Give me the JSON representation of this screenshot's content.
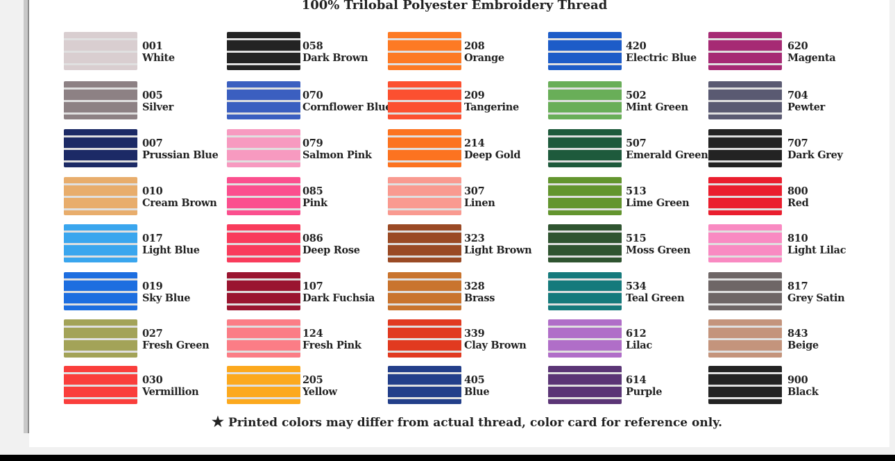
{
  "title": "100% Trilobal Polyester Embroidery Thread",
  "footnote": "Printed colors may differ from actual thread, color card for reference only.",
  "footnote_icon": "star-icon",
  "columns": [
    [
      {
        "code": "001",
        "name": "White",
        "color": "#d9ced0"
      },
      {
        "code": "005",
        "name": "Silver",
        "color": "#8d8184"
      },
      {
        "code": "007",
        "name": "Prussian Blue",
        "color": "#1c2a66"
      },
      {
        "code": "010",
        "name": "Cream Brown",
        "color": "#e8ad6c"
      },
      {
        "code": "017",
        "name": "Light Blue",
        "color": "#3aa6ee"
      },
      {
        "code": "019",
        "name": "Sky Blue",
        "color": "#1d6ee0"
      },
      {
        "code": "027",
        "name": "Fresh Green",
        "color": "#a3a358"
      },
      {
        "code": "030",
        "name": "Vermillion",
        "color": "#fa3e3c"
      }
    ],
    [
      {
        "code": "058",
        "name": "Dark Brown",
        "color": "#232323"
      },
      {
        "code": "070",
        "name": "Cornflower Blue",
        "color": "#3b5fc0"
      },
      {
        "code": "079",
        "name": "Salmon Pink",
        "color": "#f79ac0"
      },
      {
        "code": "085",
        "name": "Pink",
        "color": "#fb4f8e"
      },
      {
        "code": "086",
        "name": "Deep Rose",
        "color": "#f93c5c"
      },
      {
        "code": "107",
        "name": "Dark Fuchsia",
        "color": "#9a1530"
      },
      {
        "code": "124",
        "name": "Fresh Pink",
        "color": "#fb7d86"
      },
      {
        "code": "205",
        "name": "Yellow",
        "color": "#fca91e"
      }
    ],
    [
      {
        "code": "208",
        "name": "Orange",
        "color": "#fd7a24"
      },
      {
        "code": "209",
        "name": "Tangerine",
        "color": "#fc5030"
      },
      {
        "code": "214",
        "name": "Deep Gold",
        "color": "#fc7320"
      },
      {
        "code": "307",
        "name": "Linen",
        "color": "#f99a90"
      },
      {
        "code": "323",
        "name": "Light Brown",
        "color": "#9a4a25"
      },
      {
        "code": "328",
        "name": "Brass",
        "color": "#c9742e"
      },
      {
        "code": "339",
        "name": "Clay Brown",
        "color": "#e13a20"
      },
      {
        "code": "405",
        "name": "Blue",
        "color": "#233f8a"
      }
    ],
    [
      {
        "code": "420",
        "name": "Electric Blue",
        "color": "#1d5cc8"
      },
      {
        "code": "502",
        "name": "Mint Green",
        "color": "#69ae58"
      },
      {
        "code": "507",
        "name": "Emerald Green",
        "color": "#1e5a3c"
      },
      {
        "code": "513",
        "name": "Lime Green",
        "color": "#63952e"
      },
      {
        "code": "515",
        "name": "Moss Green",
        "color": "#2f5430"
      },
      {
        "code": "534",
        "name": "Teal Green",
        "color": "#157a7c"
      },
      {
        "code": "612",
        "name": "Lilac",
        "color": "#b06ec8"
      },
      {
        "code": "614",
        "name": "Purple",
        "color": "#5b3576"
      }
    ],
    [
      {
        "code": "620",
        "name": "Magenta",
        "color": "#a62a74"
      },
      {
        "code": "704",
        "name": "Pewter",
        "color": "#5a5a72"
      },
      {
        "code": "707",
        "name": "Dark Grey",
        "color": "#232323"
      },
      {
        "code": "800",
        "name": "Red",
        "color": "#ea1e2e"
      },
      {
        "code": "810",
        "name": "Light Lilac",
        "color": "#f98ac2"
      },
      {
        "code": "817",
        "name": "Grey Satin",
        "color": "#6e6666"
      },
      {
        "code": "843",
        "name": "Beige",
        "color": "#c4947c"
      },
      {
        "code": "900",
        "name": "Black",
        "color": "#232323"
      }
    ]
  ]
}
